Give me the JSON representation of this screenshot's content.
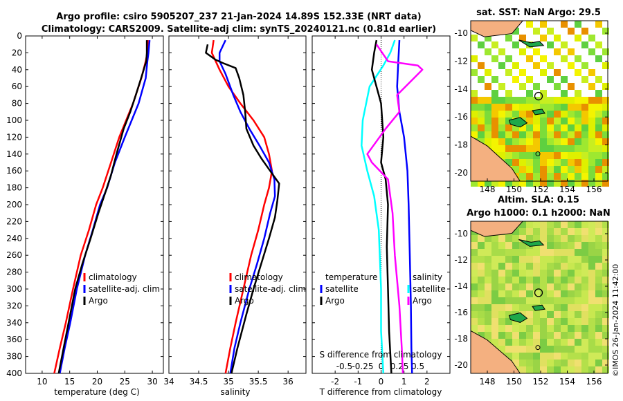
{
  "header": {
    "line1": "Argo profile: csiro 5905207_237 21-Jan-2024 14.89S 152.33E (NRT data)",
    "line2": "Climatology: CARS2009. Satellite-adj clim: synTS_20240121.nc (0.81d earlier)"
  },
  "chart_data": [
    {
      "type": "line",
      "id": "temperature",
      "xlabel": "temperature (deg C)",
      "ylabel": "",
      "xlim": [
        7,
        32
      ],
      "ylim": [
        400,
        0
      ],
      "xticks": [
        10,
        15,
        20,
        25,
        30
      ],
      "yticks": [
        0,
        20,
        40,
        60,
        80,
        100,
        120,
        140,
        160,
        180,
        200,
        220,
        240,
        260,
        280,
        300,
        320,
        340,
        360,
        380,
        400
      ],
      "legend": [
        "climatology",
        "satellite-adj. clim",
        "Argo"
      ],
      "series": [
        {
          "name": "climatology",
          "color": "#ff0000",
          "points": [
            [
              29.2,
              5
            ],
            [
              29.1,
              20
            ],
            [
              28.8,
              30
            ],
            [
              28.0,
              50
            ],
            [
              26.5,
              80
            ],
            [
              24.0,
              120
            ],
            [
              22.5,
              150
            ],
            [
              21.0,
              180
            ],
            [
              19.8,
              200
            ],
            [
              18.5,
              230
            ],
            [
              17.0,
              260
            ],
            [
              15.6,
              300
            ],
            [
              14.3,
              340
            ],
            [
              13.2,
              370
            ],
            [
              12.2,
              400
            ]
          ]
        },
        {
          "name": "satellite-adj. clim",
          "color": "#0000ff",
          "points": [
            [
              29.5,
              5
            ],
            [
              29.3,
              20
            ],
            [
              29.1,
              30
            ],
            [
              28.8,
              50
            ],
            [
              27.5,
              80
            ],
            [
              25.0,
              120
            ],
            [
              23.2,
              150
            ],
            [
              21.8,
              180
            ],
            [
              20.5,
              200
            ],
            [
              19.2,
              230
            ],
            [
              17.8,
              260
            ],
            [
              16.3,
              300
            ],
            [
              15.1,
              340
            ],
            [
              14.1,
              370
            ],
            [
              13.2,
              400
            ]
          ]
        },
        {
          "name": "Argo",
          "color": "#000000",
          "points": [
            [
              29.0,
              5
            ],
            [
              29.0,
              20
            ],
            [
              28.9,
              30
            ],
            [
              28.2,
              45
            ],
            [
              27.0,
              70
            ],
            [
              26.0,
              90
            ],
            [
              24.8,
              110
            ],
            [
              23.5,
              140
            ],
            [
              22.5,
              165
            ],
            [
              21.5,
              185
            ],
            [
              20.2,
              210
            ],
            [
              18.8,
              240
            ],
            [
              17.3,
              270
            ],
            [
              16.0,
              300
            ],
            [
              14.8,
              340
            ],
            [
              13.9,
              370
            ],
            [
              13.0,
              400
            ]
          ]
        }
      ]
    },
    {
      "type": "line",
      "id": "salinity",
      "xlabel": "salinity",
      "xlim": [
        34,
        36.3
      ],
      "ylim": [
        400,
        0
      ],
      "xticks": [
        34,
        34.5,
        35,
        35.5,
        36
      ],
      "legend": [
        "climatology",
        "satellite-adj. clim",
        "Argo"
      ],
      "series": [
        {
          "name": "climatology",
          "color": "#ff0000",
          "points": [
            [
              34.75,
              5
            ],
            [
              34.72,
              20
            ],
            [
              34.85,
              40
            ],
            [
              35.0,
              60
            ],
            [
              35.2,
              80
            ],
            [
              35.42,
              100
            ],
            [
              35.6,
              120
            ],
            [
              35.68,
              140
            ],
            [
              35.73,
              160
            ],
            [
              35.68,
              180
            ],
            [
              35.6,
              200
            ],
            [
              35.5,
              230
            ],
            [
              35.38,
              260
            ],
            [
              35.25,
              300
            ],
            [
              35.12,
              340
            ],
            [
              35.03,
              370
            ],
            [
              34.95,
              400
            ]
          ]
        },
        {
          "name": "satellite-adj. clim",
          "color": "#0000ff",
          "points": [
            [
              34.95,
              5
            ],
            [
              34.85,
              20
            ],
            [
              34.85,
              30
            ],
            [
              34.95,
              45
            ],
            [
              35.08,
              70
            ],
            [
              35.2,
              90
            ],
            [
              35.35,
              110
            ],
            [
              35.52,
              130
            ],
            [
              35.68,
              150
            ],
            [
              35.77,
              170
            ],
            [
              35.78,
              190
            ],
            [
              35.7,
              210
            ],
            [
              35.6,
              240
            ],
            [
              35.48,
              270
            ],
            [
              35.35,
              300
            ],
            [
              35.2,
              340
            ],
            [
              35.1,
              370
            ],
            [
              35.03,
              400
            ]
          ]
        },
        {
          "name": "Argo",
          "color": "#000000",
          "points": [
            [
              34.65,
              10
            ],
            [
              34.62,
              20
            ],
            [
              34.78,
              28
            ],
            [
              34.9,
              32
            ],
            [
              35.12,
              38
            ],
            [
              35.18,
              50
            ],
            [
              35.25,
              70
            ],
            [
              35.28,
              90
            ],
            [
              35.3,
              110
            ],
            [
              35.42,
              130
            ],
            [
              35.55,
              145
            ],
            [
              35.7,
              160
            ],
            [
              35.85,
              175
            ],
            [
              35.82,
              195
            ],
            [
              35.78,
              215
            ],
            [
              35.68,
              240
            ],
            [
              35.55,
              270
            ],
            [
              35.42,
              300
            ],
            [
              35.3,
              330
            ],
            [
              35.15,
              370
            ],
            [
              35.05,
              400
            ]
          ]
        }
      ]
    },
    {
      "type": "line",
      "id": "difference",
      "xlabel": "T difference from climatology",
      "xlabel_top": "S difference from climatology",
      "xlim": [
        -3,
        3
      ],
      "ylim": [
        400,
        0
      ],
      "xticks": [
        -2,
        -1,
        0,
        1,
        2
      ],
      "xticks_s": [
        -0.5,
        -0.25,
        0,
        0.25,
        0.5
      ],
      "legend_left": {
        "title": "temperature",
        "items": [
          "satellite",
          "Argo"
        ]
      },
      "legend_right": {
        "title": "salinity",
        "items": [
          "satellite",
          "Argo"
        ]
      },
      "series": [
        {
          "name": "T satellite",
          "color": "#00ffff",
          "points": [
            [
              0.6,
              5
            ],
            [
              0.4,
              20
            ],
            [
              0.1,
              35
            ],
            [
              -0.5,
              60
            ],
            [
              -0.8,
              100
            ],
            [
              -0.85,
              130
            ],
            [
              -0.6,
              160
            ],
            [
              -0.3,
              190
            ],
            [
              -0.1,
              230
            ],
            [
              0.0,
              300
            ],
            [
              0.0,
              350
            ],
            [
              0.1,
              400
            ]
          ]
        },
        {
          "name": "T Argo",
          "color": "#000000",
          "points": [
            [
              -0.2,
              5
            ],
            [
              -0.3,
              20
            ],
            [
              -0.4,
              40
            ],
            [
              0.0,
              80
            ],
            [
              0.1,
              120
            ],
            [
              0.0,
              150
            ],
            [
              0.2,
              170
            ],
            [
              0.3,
              200
            ],
            [
              0.25,
              250
            ],
            [
              0.3,
              300
            ],
            [
              0.35,
              350
            ],
            [
              0.45,
              400
            ]
          ]
        },
        {
          "name": "S satellite",
          "color": "#0000ff",
          "points": [
            [
              0.8,
              5
            ],
            [
              0.75,
              30
            ],
            [
              0.7,
              60
            ],
            [
              0.8,
              90
            ],
            [
              1.0,
              120
            ],
            [
              1.15,
              160
            ],
            [
              1.2,
              200
            ],
            [
              1.25,
              260
            ],
            [
              1.3,
              320
            ],
            [
              1.32,
              370
            ],
            [
              1.35,
              400
            ]
          ]
        },
        {
          "name": "S Argo",
          "color": "#ff00ff",
          "points": [
            [
              -0.2,
              10
            ],
            [
              0.3,
              30
            ],
            [
              1.6,
              35
            ],
            [
              1.8,
              40
            ],
            [
              0.7,
              70
            ],
            [
              0.8,
              90
            ],
            [
              0.2,
              110
            ],
            [
              -0.6,
              140
            ],
            [
              -0.4,
              150
            ],
            [
              0.3,
              170
            ],
            [
              0.5,
              210
            ],
            [
              0.6,
              260
            ],
            [
              0.8,
              320
            ],
            [
              0.9,
              370
            ],
            [
              0.95,
              400
            ]
          ]
        }
      ]
    }
  ],
  "maps": {
    "sst": {
      "title": "sat. SST: NaN Argo: 29.5",
      "lon_ticks": [
        "148",
        "150",
        "152",
        "154",
        "156"
      ],
      "lat_ticks": [
        "-10",
        "-12",
        "-14",
        "-16",
        "-18",
        "-20"
      ]
    },
    "sla": {
      "title1": "Altim. SLA: 0.15",
      "title2": "Argo h1000: 0.1 h2000: NaN",
      "lon_ticks": [
        "148",
        "150",
        "152",
        "154",
        "156"
      ],
      "lat_ticks": [
        "-10",
        "-12",
        "-14",
        "-16",
        "-18",
        "-20"
      ]
    }
  },
  "credit": "©IMOS 26-Jan-2024 11:42:00"
}
